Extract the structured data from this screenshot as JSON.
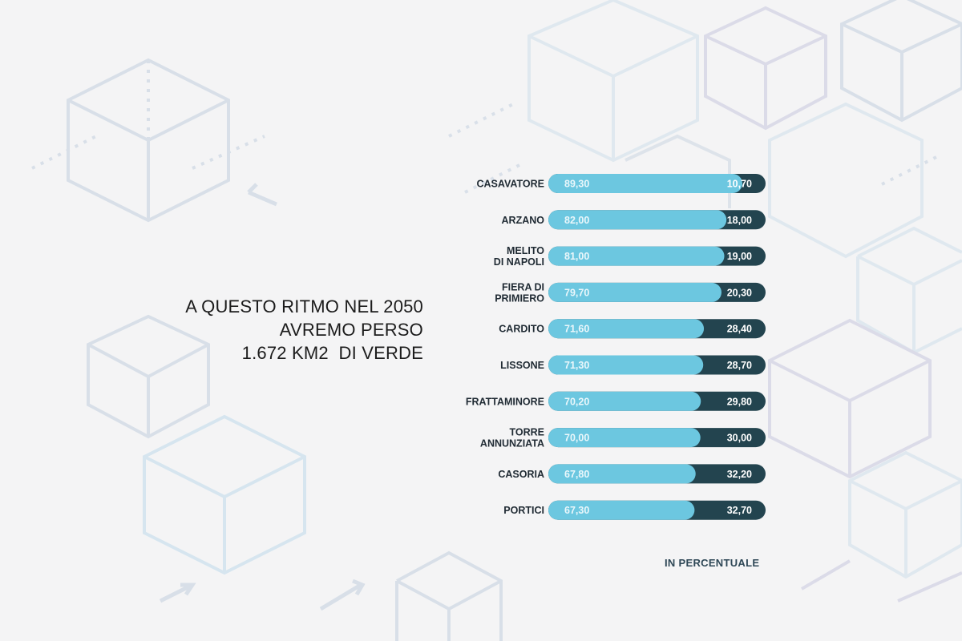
{
  "headline": {
    "line1": "A QUESTO RITMO NEL 2050",
    "line2": "AVREMO PERSO",
    "line3": "1.672 KM2  DI VERDE"
  },
  "note": "IN PERCENTUALE",
  "colors": {
    "bar_light": "#6cc7e0",
    "bar_dark": "#23444f",
    "background": "#f4f4f5",
    "pattern": "#d2dbe6"
  },
  "chart_data": {
    "type": "bar",
    "orientation": "horizontal-stacked",
    "categories": [
      [
        "CASAVATORE"
      ],
      [
        "ARZANO"
      ],
      [
        "MELITO",
        "DI NAPOLI"
      ],
      [
        "FIERA DI",
        "PRIMIERO"
      ],
      [
        "CARDITO"
      ],
      [
        "LISSONE"
      ],
      [
        "FRATTAMINORE"
      ],
      [
        "TORRE",
        "ANNUNZIATA"
      ],
      [
        "CASORIA"
      ],
      [
        "PORTICI"
      ]
    ],
    "series": [
      {
        "values": [
          89.3,
          82.0,
          81.0,
          79.7,
          71.6,
          71.3,
          70.2,
          70.0,
          67.8,
          67.3
        ],
        "labels": [
          "89,30",
          "82,00",
          "81,00",
          "79,70",
          "71,60",
          "71,30",
          "70,20",
          "70,00",
          "67,80",
          "67,30"
        ]
      },
      {
        "values": [
          10.7,
          18.0,
          19.0,
          20.3,
          28.4,
          28.7,
          29.8,
          30.0,
          32.2,
          32.7
        ],
        "labels": [
          "10,70",
          "18,00",
          "19,00",
          "20,30",
          "28,40",
          "28,70",
          "29,80",
          "30,00",
          "32,20",
          "32,70"
        ]
      }
    ],
    "xlim": [
      0,
      100
    ],
    "grid": false,
    "legend": "none"
  }
}
